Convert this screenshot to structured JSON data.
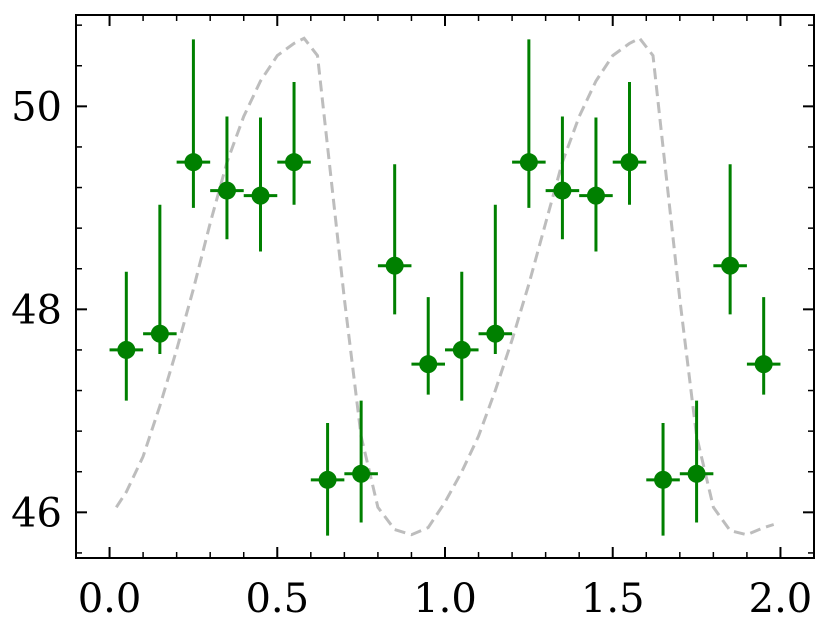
{
  "chart_data": {
    "type": "scatter",
    "title": "",
    "xlabel": "",
    "ylabel": "",
    "xlim": [
      -0.1,
      2.1
    ],
    "ylim": [
      45.55,
      50.9
    ],
    "xticks": [
      "0.0",
      "0.5",
      "1.0",
      "1.5",
      "2.0"
    ],
    "yticks": [
      "46",
      "48",
      "50"
    ],
    "grid": false,
    "legend": "none",
    "colors": {
      "points": "#008000",
      "model": "#bdbdbd",
      "axes": "#000000"
    },
    "series": [
      {
        "kind": "errorbar",
        "x": [
          0.05,
          0.15,
          0.25,
          0.35,
          0.45,
          0.55,
          0.65,
          0.75,
          0.85,
          0.95,
          1.05,
          1.15,
          1.25,
          1.35,
          1.45,
          1.55,
          1.65,
          1.75,
          1.85,
          1.95
        ],
        "y": [
          47.6,
          47.76,
          49.45,
          49.17,
          49.12,
          49.45,
          46.32,
          46.38,
          48.43,
          47.46,
          47.6,
          47.76,
          49.45,
          49.17,
          49.12,
          49.45,
          46.32,
          46.38,
          48.43,
          47.46
        ],
        "yerr_low": [
          0.5,
          0.2,
          0.45,
          0.48,
          0.55,
          0.42,
          0.55,
          0.48,
          0.48,
          0.3,
          0.5,
          0.2,
          0.45,
          0.48,
          0.55,
          0.42,
          0.55,
          0.48,
          0.48,
          0.3
        ],
        "yerr_high": [
          0.77,
          1.27,
          1.21,
          0.73,
          0.77,
          0.79,
          0.56,
          0.72,
          1.0,
          0.66,
          0.77,
          1.27,
          1.21,
          0.73,
          0.77,
          0.79,
          0.56,
          0.72,
          1.0,
          0.66
        ],
        "xerr": 0.05
      },
      {
        "kind": "line",
        "dashed": true,
        "x": [
          0.02,
          0.05,
          0.1,
          0.15,
          0.2,
          0.25,
          0.3,
          0.35,
          0.4,
          0.45,
          0.5,
          0.55,
          0.58,
          0.62,
          0.65,
          0.7,
          0.75,
          0.8,
          0.85,
          0.9,
          0.95,
          1.0,
          1.05,
          1.1,
          1.15,
          1.2,
          1.25,
          1.3,
          1.35,
          1.4,
          1.45,
          1.5,
          1.55,
          1.58,
          1.62,
          1.65,
          1.7,
          1.75,
          1.8,
          1.85,
          1.9,
          1.95,
          1.98
        ],
        "y": [
          46.05,
          46.2,
          46.55,
          47.05,
          47.6,
          48.2,
          48.85,
          49.45,
          49.9,
          50.25,
          50.5,
          50.62,
          50.67,
          50.5,
          49.6,
          48.1,
          46.75,
          46.05,
          45.83,
          45.78,
          45.85,
          46.1,
          46.4,
          46.75,
          47.2,
          47.7,
          48.25,
          48.85,
          49.45,
          49.9,
          50.25,
          50.5,
          50.62,
          50.67,
          50.5,
          49.6,
          48.1,
          46.75,
          46.05,
          45.82,
          45.78,
          45.85,
          45.88
        ]
      }
    ]
  }
}
